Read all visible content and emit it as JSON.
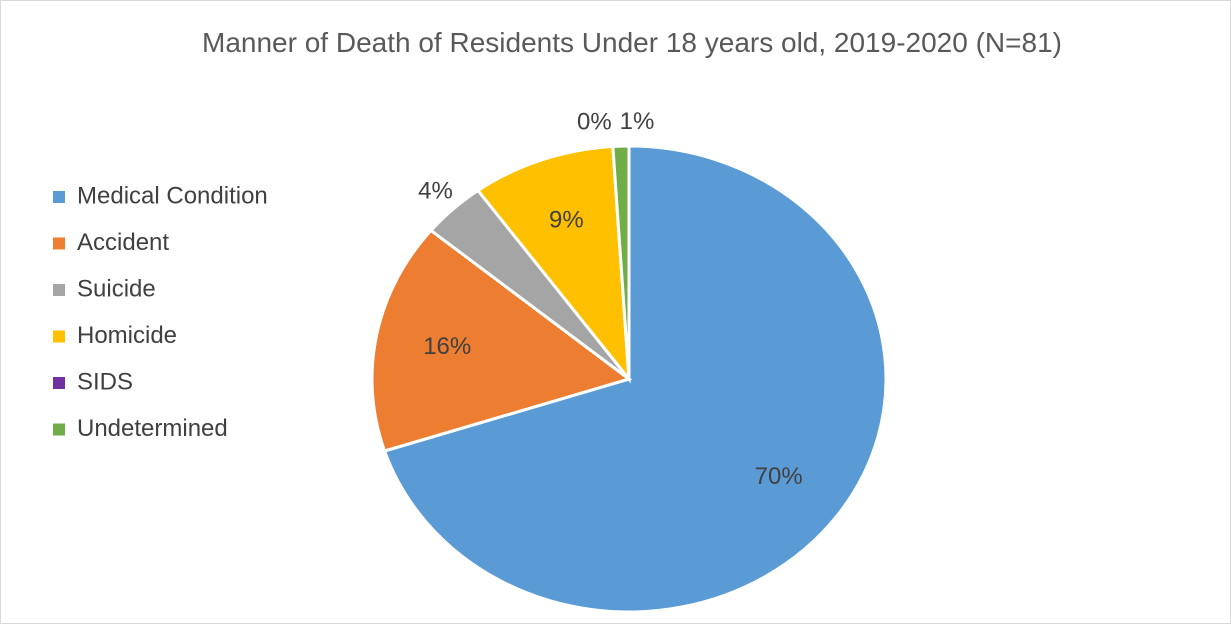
{
  "chart_data": {
    "type": "pie",
    "title": "Manner of Death of Residents Under 18 years old, 2019-2020 (N=81)",
    "categories": [
      "Medical Condition",
      "Accident",
      "Suicide",
      "Homicide",
      "SIDS",
      "Undetermined"
    ],
    "values": [
      70,
      16,
      4,
      9,
      0,
      1
    ],
    "value_labels": [
      "70%",
      "16%",
      "4%",
      "9%",
      "0%",
      "1%"
    ],
    "colors": [
      "#5b9bd5",
      "#ed7d31",
      "#a5a5a5",
      "#ffc000",
      "#7030a0",
      "#70ad47"
    ],
    "legend": "left"
  }
}
